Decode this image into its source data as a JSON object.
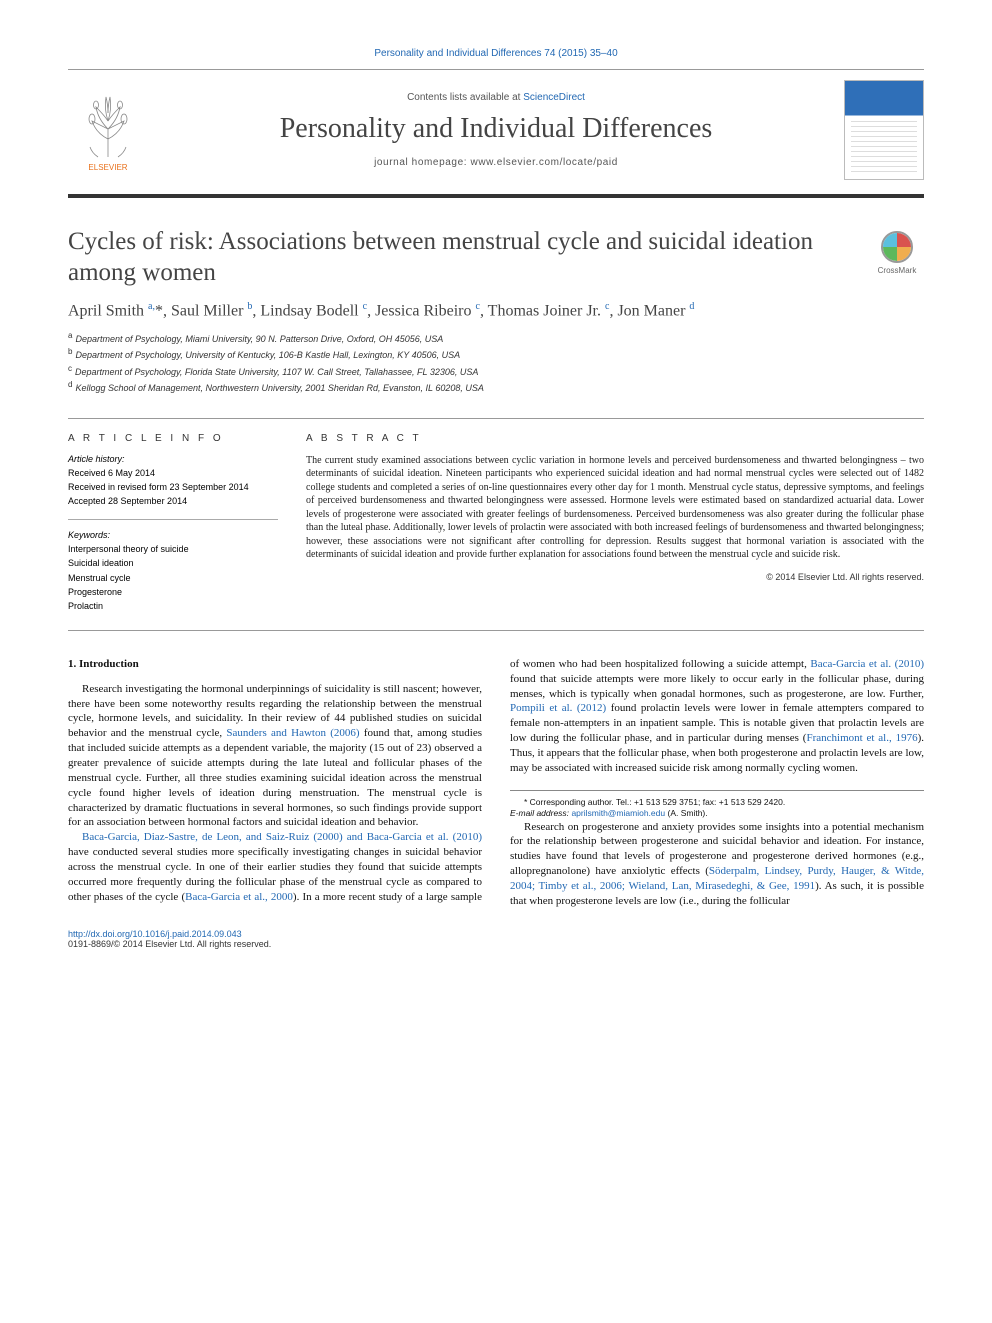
{
  "header": {
    "citation": "Personality and Individual Differences 74 (2015) 35–40",
    "publisher_name": "ELSEVIER",
    "contents_prefix": "Contents lists available at ",
    "contents_link": "ScienceDirect",
    "journal_name": "Personality and Individual Differences",
    "homepage_prefix": "journal homepage: ",
    "homepage_url": "www.elsevier.com/locate/paid"
  },
  "crossmark_label": "CrossMark",
  "title": "Cycles of risk: Associations between menstrual cycle and suicidal ideation among women",
  "authors_html": "April Smith <sup>a,</sup>*, Saul Miller <sup>b</sup>, Lindsay Bodell <sup>c</sup>, Jessica Ribeiro <sup>c</sup>, Thomas Joiner Jr. <sup>c</sup>, Jon Maner <sup>d</sup>",
  "affiliations": [
    {
      "sup": "a",
      "text": "Department of Psychology, Miami University, 90 N. Patterson Drive, Oxford, OH 45056, USA"
    },
    {
      "sup": "b",
      "text": "Department of Psychology, University of Kentucky, 106-B Kastle Hall, Lexington, KY 40506, USA"
    },
    {
      "sup": "c",
      "text": "Department of Psychology, Florida State University, 1107 W. Call Street, Tallahassee, FL 32306, USA"
    },
    {
      "sup": "d",
      "text": "Kellogg School of Management, Northwestern University, 2001 Sheridan Rd, Evanston, IL 60208, USA"
    }
  ],
  "info": {
    "heading": "A R T I C L E   I N F O",
    "history_label": "Article history:",
    "history": [
      "Received 6 May 2014",
      "Received in revised form 23 September 2014",
      "Accepted 28 September 2014"
    ],
    "kw_label": "Keywords:",
    "keywords": [
      "Interpersonal theory of suicide",
      "Suicidal ideation",
      "Menstrual cycle",
      "Progesterone",
      "Prolactin"
    ]
  },
  "abstract": {
    "heading": "A B S T R A C T",
    "text": "The current study examined associations between cyclic variation in hormone levels and perceived burdensomeness and thwarted belongingness – two determinants of suicidal ideation. Nineteen participants who experienced suicidal ideation and had normal menstrual cycles were selected out of 1482 college students and completed a series of on-line questionnaires every other day for 1 month. Menstrual cycle status, depressive symptoms, and feelings of perceived burdensomeness and thwarted belongingness were assessed. Hormone levels were estimated based on standardized actuarial data. Lower levels of progesterone were associated with greater feelings of burdensomeness. Perceived burdensomeness was also greater during the follicular phase than the luteal phase. Additionally, lower levels of prolactin were associated with both increased feelings of burdensomeness and thwarted belongingness; however, these associations were not significant after controlling for depression. Results suggest that hormonal variation is associated with the determinants of suicidal ideation and provide further explanation for associations found between the menstrual cycle and suicide risk.",
    "copyright": "© 2014 Elsevier Ltd. All rights reserved."
  },
  "body": {
    "section_heading": "1. Introduction",
    "paragraphs": [
      "Research investigating the hormonal underpinnings of suicidality is still nascent; however, there have been some noteworthy results regarding the relationship between the menstrual cycle, hormone levels, and suicidality. In their review of 44 published studies on suicidal behavior and the menstrual cycle, <span class=\"cite\">Saunders and Hawton (2006)</span> found that, among studies that included suicide attempts as a dependent variable, the majority (15 out of 23) observed a greater prevalence of suicide attempts during the late luteal and follicular phases of the menstrual cycle. Further, all three studies examining suicidal ideation across the menstrual cycle found higher levels of ideation during menstruation. The menstrual cycle is characterized by dramatic fluctuations in several hormones, so such findings provide support for an association between hormonal factors and suicidal ideation and behavior.",
      "<span class=\"cite\">Baca-Garcia, Diaz-Sastre, de Leon, and Saiz-Ruiz (2000) and Baca-Garcia et al. (2010)</span> have conducted several studies more specifically investigating changes in suicidal behavior across the menstrual cycle. In one of their earlier studies they found that suicide attempts occurred more frequently during the follicular phase of the menstrual cycle as compared to other phases of the cycle (<span class=\"cite\">Baca-Garcia et al., 2000</span>). In a more recent study of a large sample of women who had been hospitalized following a suicide attempt, <span class=\"cite\">Baca-Garcia et al. (2010)</span> found that suicide attempts were more likely to occur early in the follicular phase, during menses, which is typically when gonadal hormones, such as progesterone, are low. Further, <span class=\"cite\">Pompili et al. (2012)</span> found prolactin levels were lower in female attempters compared to female non-attempters in an inpatient sample. This is notable given that prolactin levels are low during the follicular phase, and in particular during menses (<span class=\"cite\">Franchimont et al., 1976</span>). Thus, it appears that the follicular phase, when both progesterone and prolactin levels are low, may be associated with increased suicide risk among normally cycling women.",
      "Research on progesterone and anxiety provides some insights into a potential mechanism for the relationship between progesterone and suicidal behavior and ideation. For instance, studies have found that levels of progesterone and progesterone derived hormones (e.g., allopregnanolone) have anxiolytic effects (<span class=\"cite\">Söderpalm, Lindsey, Purdy, Hauger, & Witde, 2004; Timby et al., 2006; Wieland, Lan, Mirasedeghi, & Gee, 1991</span>). As such, it is possible that when progesterone levels are low (i.e., during the follicular"
    ]
  },
  "footnote": {
    "corr": "* Corresponding author. Tel.: +1 513 529 3751; fax: +1 513 529 2420.",
    "email_label": "E-mail address:",
    "email": "aprilsmith@miamioh.edu",
    "email_suffix": "(A. Smith)."
  },
  "footer": {
    "doi": "http://dx.doi.org/10.1016/j.paid.2014.09.043",
    "issn_line": "0191-8869/© 2014 Elsevier Ltd. All rights reserved."
  },
  "colors": {
    "link": "#2268b3",
    "publisher": "#e9711c",
    "rule": "#333333",
    "text": "#111111"
  },
  "typography": {
    "title_fontsize": 25,
    "journal_fontsize": 28,
    "authors_fontsize": 16,
    "body_fontsize": 11,
    "abstract_fontsize": 10,
    "affil_fontsize": 9
  }
}
